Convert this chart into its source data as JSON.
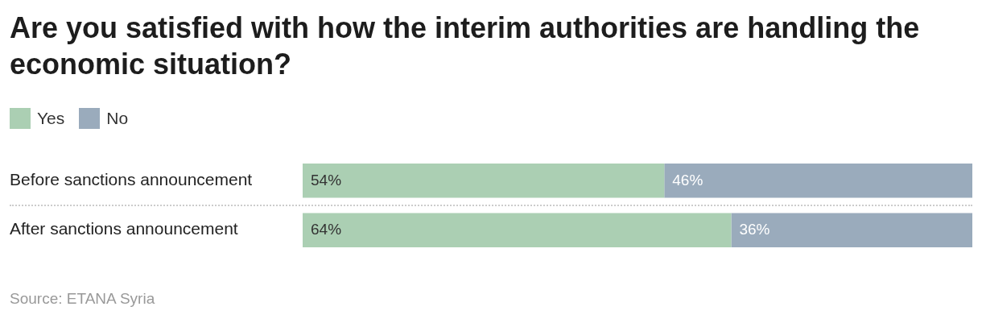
{
  "chart_data": {
    "type": "bar",
    "orientation": "horizontal",
    "stacked": true,
    "title": "Are you satisfied with how the interim authorities are handling the economic situation?",
    "categories": [
      "Before sanctions announcement",
      "After sanctions announcement"
    ],
    "series": [
      {
        "name": "Yes",
        "color": "#abcfb3",
        "values": [
          54,
          64
        ],
        "value_labels": [
          "54%",
          "64%"
        ]
      },
      {
        "name": "No",
        "color": "#9aabbc",
        "values": [
          46,
          36
        ],
        "value_labels": [
          "46%",
          "36%"
        ]
      }
    ],
    "legend": "top left",
    "annotations": [
      "Source: ETANA Syria"
    ]
  }
}
